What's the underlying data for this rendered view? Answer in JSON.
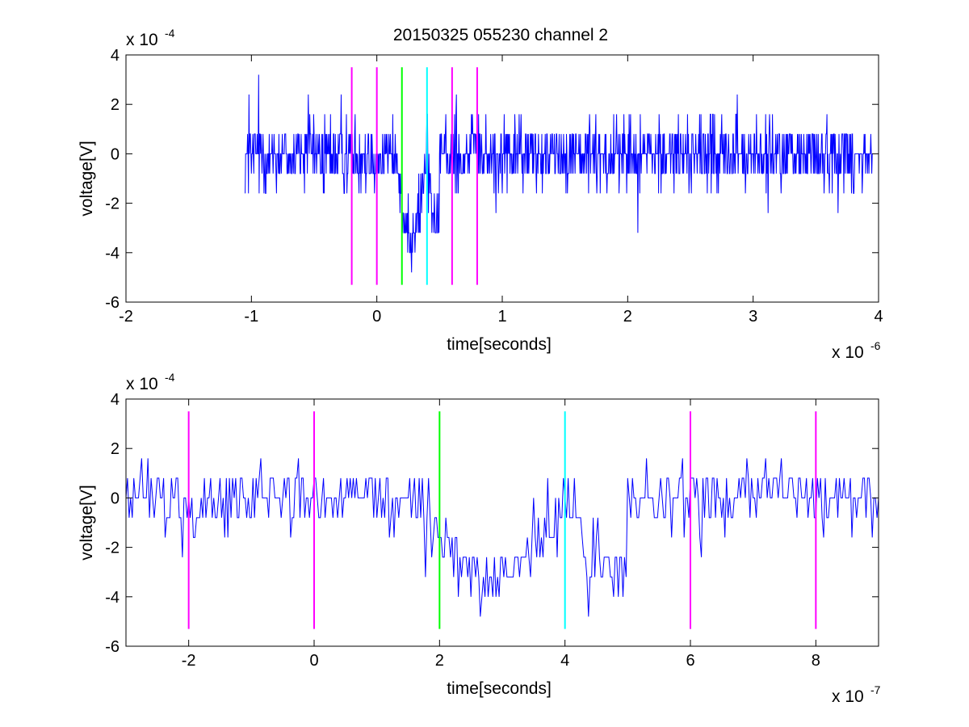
{
  "figure": {
    "title": "20150325 055230 channel 2"
  },
  "chart_data": [
    {
      "type": "line",
      "title": "20150325 055230 channel 2",
      "xlabel": "time[seconds]",
      "ylabel": "voltage[V]",
      "x_exponent_label": "x 10",
      "x_exponent": "-6",
      "y_exponent_label": "x 10",
      "y_exponent": "-4",
      "xlim": [
        -2,
        4
      ],
      "ylim": [
        -6,
        4
      ],
      "x_ticks": [
        -2,
        -1,
        0,
        1,
        2,
        3,
        4
      ],
      "x_tick_labels": [
        "-2",
        "-1",
        "0",
        "1",
        "2",
        "3",
        "4"
      ],
      "y_ticks": [
        -6,
        -4,
        -2,
        0,
        2,
        4
      ],
      "y_tick_labels": [
        "-6",
        "-4",
        "-2",
        "0",
        "2",
        "4"
      ],
      "grid": false,
      "signal": {
        "color": "#0000ff",
        "x_start": -1.05,
        "x_end": 3.95,
        "quantization_step": 0.8,
        "dip": {
          "x_from": 0.15,
          "x_to": 0.5,
          "level": -3.2
        }
      },
      "markers": [
        {
          "x": -0.2,
          "color": "#ff00ff",
          "y_range": [
            -5.3,
            3.5
          ]
        },
        {
          "x": 0.0,
          "color": "#ff00ff",
          "y_range": [
            -5.3,
            3.5
          ]
        },
        {
          "x": 0.2,
          "color": "#00ff00",
          "y_range": [
            -5.3,
            3.5
          ]
        },
        {
          "x": 0.4,
          "color": "#00ffff",
          "y_range": [
            -5.3,
            3.5
          ]
        },
        {
          "x": 0.6,
          "color": "#ff00ff",
          "y_range": [
            -5.3,
            3.5
          ]
        },
        {
          "x": 0.8,
          "color": "#ff00ff",
          "y_range": [
            -5.3,
            3.5
          ]
        }
      ]
    },
    {
      "type": "line",
      "title": "",
      "xlabel": "time[seconds]",
      "ylabel": "voltage[V]",
      "x_exponent_label": "x 10",
      "x_exponent": "-7",
      "y_exponent_label": "x 10",
      "y_exponent": "-4",
      "xlim": [
        -3,
        9
      ],
      "ylim": [
        -6,
        4
      ],
      "x_ticks": [
        -2,
        0,
        2,
        4,
        6,
        8
      ],
      "x_tick_labels": [
        "-2",
        "0",
        "2",
        "4",
        "6",
        "8"
      ],
      "y_ticks": [
        -6,
        -4,
        -2,
        0,
        2,
        4
      ],
      "y_tick_labels": [
        "-6",
        "-4",
        "-2",
        "0",
        "2",
        "4"
      ],
      "grid": false,
      "signal": {
        "color": "#0000ff",
        "x_start": -3,
        "x_end": 9,
        "quantization_step": 0.8,
        "dip": {
          "x_from": 1.6,
          "x_to": 5.0,
          "level": -3.2
        }
      },
      "markers": [
        {
          "x": -2,
          "color": "#ff00ff",
          "y_range": [
            -5.3,
            3.5
          ]
        },
        {
          "x": 0,
          "color": "#ff00ff",
          "y_range": [
            -5.3,
            3.5
          ]
        },
        {
          "x": 2,
          "color": "#00ff00",
          "y_range": [
            -5.3,
            3.5
          ]
        },
        {
          "x": 4,
          "color": "#00ffff",
          "y_range": [
            -5.3,
            3.5
          ]
        },
        {
          "x": 6,
          "color": "#ff00ff",
          "y_range": [
            -5.3,
            3.5
          ]
        },
        {
          "x": 8,
          "color": "#ff00ff",
          "y_range": [
            -5.3,
            3.5
          ]
        }
      ]
    }
  ]
}
